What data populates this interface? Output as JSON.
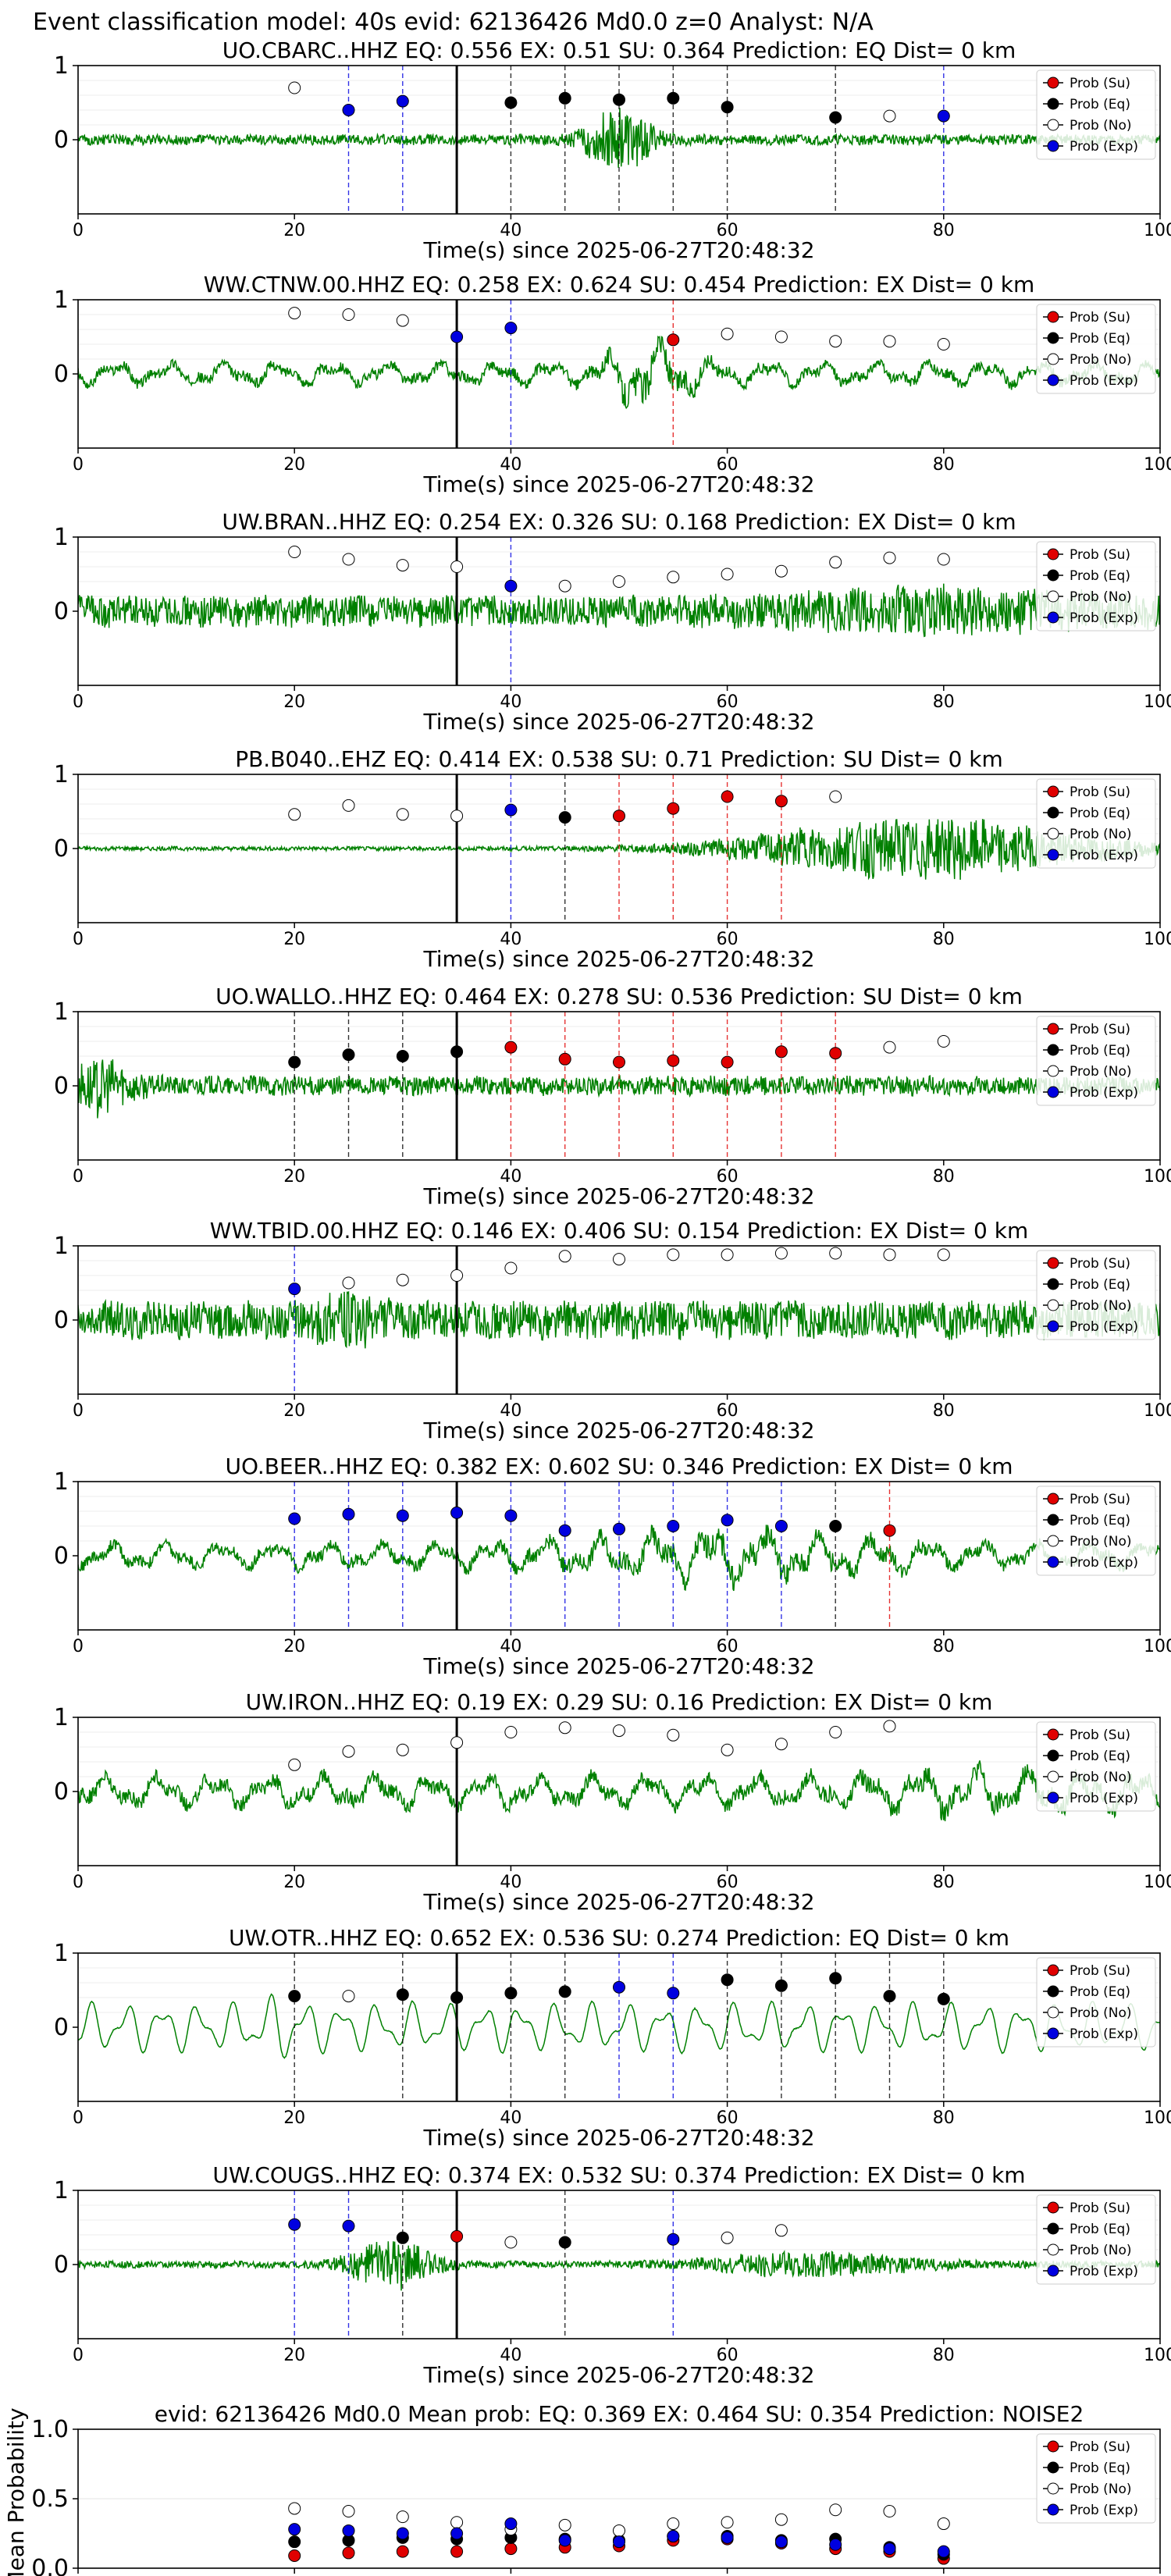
{
  "figure_title": "Event classification model: 40s evid: 62136426 Md0.0 z=0 Analyst: N/A",
  "xlabel": "Time(s) since 2025-06-27T20:48:32",
  "legend": [
    {
      "label": "Prob (Su)",
      "face": "#e00000",
      "edge": "#000000"
    },
    {
      "label": "Prob (Eq)",
      "face": "#000000",
      "edge": "#000000"
    },
    {
      "label": "Prob (No)",
      "face": "#ffffff",
      "edge": "#000000"
    },
    {
      "label": "Prob (Exp)",
      "face": "#0000e0",
      "edge": "#000000"
    }
  ],
  "colors": {
    "trace": "#008000",
    "su": "#e00000",
    "eq": "#000000",
    "no": "#ffffff",
    "exp": "#0000e0"
  },
  "chart_data": [
    {
      "type": "scatter",
      "title": "UO.CBARC..HHZ   EQ: 0.556  EX: 0.51  SU: 0.364   Prediction: EQ    Dist= 0 km",
      "xlim": [
        0,
        100
      ],
      "ylim": [
        -1,
        1
      ],
      "xticks": [
        0,
        20,
        40,
        60,
        80,
        100
      ],
      "yticks": [
        0,
        1
      ],
      "pick_line": 35,
      "trace": {
        "seed": 11,
        "amp": 0.15,
        "burst": {
          "center": 50,
          "width": 3,
          "amp": 0.85
        },
        "style": "noise"
      },
      "points": [
        {
          "x": 20,
          "y": 0.7,
          "cls": "no"
        },
        {
          "x": 25,
          "y": 0.4,
          "cls": "exp"
        },
        {
          "x": 30,
          "y": 0.52,
          "cls": "exp"
        },
        {
          "x": 40,
          "y": 0.5,
          "cls": "eq"
        },
        {
          "x": 45,
          "y": 0.56,
          "cls": "eq"
        },
        {
          "x": 50,
          "y": 0.54,
          "cls": "eq"
        },
        {
          "x": 55,
          "y": 0.56,
          "cls": "eq"
        },
        {
          "x": 60,
          "y": 0.44,
          "cls": "eq"
        },
        {
          "x": 70,
          "y": 0.3,
          "cls": "eq"
        },
        {
          "x": 75,
          "y": 0.32,
          "cls": "no"
        },
        {
          "x": 80,
          "y": 0.32,
          "cls": "exp"
        }
      ]
    },
    {
      "type": "scatter",
      "title": "WW.CTNW.00.HHZ   EQ: 0.258  EX: 0.624  SU: 0.454   Prediction: EX    Dist= 0 km",
      "xlim": [
        0,
        100
      ],
      "ylim": [
        -1,
        1
      ],
      "xticks": [
        0,
        20,
        40,
        60,
        80,
        100
      ],
      "yticks": [
        0,
        1
      ],
      "pick_line": 35,
      "trace": {
        "seed": 22,
        "amp": 0.35,
        "burst": {
          "center": 53,
          "width": 4,
          "amp": 0.8
        },
        "style": "wave"
      },
      "points": [
        {
          "x": 20,
          "y": 0.82,
          "cls": "no"
        },
        {
          "x": 25,
          "y": 0.8,
          "cls": "no"
        },
        {
          "x": 30,
          "y": 0.72,
          "cls": "no"
        },
        {
          "x": 35,
          "y": 0.5,
          "cls": "exp"
        },
        {
          "x": 40,
          "y": 0.62,
          "cls": "exp"
        },
        {
          "x": 55,
          "y": 0.46,
          "cls": "su"
        },
        {
          "x": 60,
          "y": 0.54,
          "cls": "no"
        },
        {
          "x": 65,
          "y": 0.5,
          "cls": "no"
        },
        {
          "x": 70,
          "y": 0.44,
          "cls": "no"
        },
        {
          "x": 75,
          "y": 0.44,
          "cls": "no"
        },
        {
          "x": 80,
          "y": 0.4,
          "cls": "no"
        }
      ]
    },
    {
      "type": "scatter",
      "title": "UW.BRAN..HHZ   EQ: 0.254  EX: 0.326  SU: 0.168   Prediction: EX    Dist= 0 km",
      "xlim": [
        0,
        100
      ],
      "ylim": [
        -1,
        1
      ],
      "xticks": [
        0,
        20,
        40,
        60,
        80,
        100
      ],
      "yticks": [
        0,
        1
      ],
      "pick_line": 35,
      "trace": {
        "seed": 33,
        "amp": 0.45,
        "burst": {
          "center": 80,
          "width": 15,
          "amp": 0.3
        },
        "style": "noise"
      },
      "points": [
        {
          "x": 20,
          "y": 0.8,
          "cls": "no"
        },
        {
          "x": 25,
          "y": 0.7,
          "cls": "no"
        },
        {
          "x": 30,
          "y": 0.62,
          "cls": "no"
        },
        {
          "x": 35,
          "y": 0.6,
          "cls": "no"
        },
        {
          "x": 40,
          "y": 0.34,
          "cls": "exp"
        },
        {
          "x": 45,
          "y": 0.34,
          "cls": "no"
        },
        {
          "x": 50,
          "y": 0.4,
          "cls": "no"
        },
        {
          "x": 55,
          "y": 0.46,
          "cls": "no"
        },
        {
          "x": 60,
          "y": 0.5,
          "cls": "no"
        },
        {
          "x": 65,
          "y": 0.54,
          "cls": "no"
        },
        {
          "x": 70,
          "y": 0.66,
          "cls": "no"
        },
        {
          "x": 75,
          "y": 0.72,
          "cls": "no"
        },
        {
          "x": 80,
          "y": 0.7,
          "cls": "no"
        }
      ]
    },
    {
      "type": "scatter",
      "title": "PB.B040..EHZ   EQ: 0.414  EX: 0.538  SU: 0.71   Prediction: SU    Dist= 0 km",
      "xlim": [
        0,
        100
      ],
      "ylim": [
        -1,
        1
      ],
      "xticks": [
        0,
        20,
        40,
        60,
        80,
        100
      ],
      "yticks": [
        0,
        1
      ],
      "pick_line": 35,
      "trace": {
        "seed": 44,
        "amp": 0.06,
        "burst": {
          "center": 78,
          "width": 16,
          "amp": 0.85
        },
        "style": "noise"
      },
      "points": [
        {
          "x": 20,
          "y": 0.46,
          "cls": "no"
        },
        {
          "x": 25,
          "y": 0.58,
          "cls": "no"
        },
        {
          "x": 30,
          "y": 0.46,
          "cls": "no"
        },
        {
          "x": 35,
          "y": 0.44,
          "cls": "no"
        },
        {
          "x": 40,
          "y": 0.52,
          "cls": "exp"
        },
        {
          "x": 45,
          "y": 0.42,
          "cls": "eq"
        },
        {
          "x": 50,
          "y": 0.44,
          "cls": "su"
        },
        {
          "x": 55,
          "y": 0.54,
          "cls": "su"
        },
        {
          "x": 60,
          "y": 0.7,
          "cls": "su"
        },
        {
          "x": 65,
          "y": 0.64,
          "cls": "su"
        },
        {
          "x": 70,
          "y": 0.7,
          "cls": "no"
        }
      ]
    },
    {
      "type": "scatter",
      "title": "UO.WALLO..HHZ   EQ: 0.464  EX: 0.278  SU: 0.536   Prediction: SU    Dist= 0 km",
      "xlim": [
        0,
        100
      ],
      "ylim": [
        -1,
        1
      ],
      "xticks": [
        0,
        20,
        40,
        60,
        80,
        100
      ],
      "yticks": [
        0,
        1
      ],
      "pick_line": 35,
      "trace": {
        "seed": 55,
        "amp": 0.28,
        "burst": {
          "center": 2,
          "width": 3,
          "amp": 0.6
        },
        "style": "noise"
      },
      "points": [
        {
          "x": 20,
          "y": 0.32,
          "cls": "eq"
        },
        {
          "x": 25,
          "y": 0.42,
          "cls": "eq"
        },
        {
          "x": 30,
          "y": 0.4,
          "cls": "eq"
        },
        {
          "x": 35,
          "y": 0.46,
          "cls": "eq"
        },
        {
          "x": 40,
          "y": 0.52,
          "cls": "su"
        },
        {
          "x": 45,
          "y": 0.36,
          "cls": "su"
        },
        {
          "x": 50,
          "y": 0.32,
          "cls": "su"
        },
        {
          "x": 55,
          "y": 0.34,
          "cls": "su"
        },
        {
          "x": 60,
          "y": 0.32,
          "cls": "su"
        },
        {
          "x": 65,
          "y": 0.46,
          "cls": "su"
        },
        {
          "x": 70,
          "y": 0.44,
          "cls": "su"
        },
        {
          "x": 75,
          "y": 0.52,
          "cls": "no"
        },
        {
          "x": 80,
          "y": 0.6,
          "cls": "no"
        }
      ]
    },
    {
      "type": "scatter",
      "title": "WW.TBID.00.HHZ   EQ: 0.146  EX: 0.406  SU: 0.154   Prediction: EX    Dist= 0 km",
      "xlim": [
        0,
        100
      ],
      "ylim": [
        -1,
        1
      ],
      "xticks": [
        0,
        20,
        40,
        60,
        80,
        100
      ],
      "yticks": [
        0,
        1
      ],
      "pick_line": 35,
      "trace": {
        "seed": 66,
        "amp": 0.55,
        "burst": {
          "center": 25,
          "width": 3,
          "amp": 0.35
        },
        "style": "noise"
      },
      "points": [
        {
          "x": 20,
          "y": 0.42,
          "cls": "exp"
        },
        {
          "x": 25,
          "y": 0.5,
          "cls": "no"
        },
        {
          "x": 30,
          "y": 0.54,
          "cls": "no"
        },
        {
          "x": 35,
          "y": 0.6,
          "cls": "no"
        },
        {
          "x": 40,
          "y": 0.7,
          "cls": "no"
        },
        {
          "x": 45,
          "y": 0.86,
          "cls": "no"
        },
        {
          "x": 50,
          "y": 0.82,
          "cls": "no"
        },
        {
          "x": 55,
          "y": 0.88,
          "cls": "no"
        },
        {
          "x": 60,
          "y": 0.88,
          "cls": "no"
        },
        {
          "x": 65,
          "y": 0.9,
          "cls": "no"
        },
        {
          "x": 70,
          "y": 0.9,
          "cls": "no"
        },
        {
          "x": 75,
          "y": 0.88,
          "cls": "no"
        },
        {
          "x": 80,
          "y": 0.88,
          "cls": "no"
        }
      ]
    },
    {
      "type": "scatter",
      "title": "UO.BEER..HHZ   EQ: 0.382  EX: 0.602  SU: 0.346   Prediction: EX    Dist= 0 km",
      "xlim": [
        0,
        100
      ],
      "ylim": [
        -1,
        1
      ],
      "xticks": [
        0,
        20,
        40,
        60,
        80,
        100
      ],
      "yticks": [
        0,
        1
      ],
      "pick_line": 35,
      "trace": {
        "seed": 77,
        "amp": 0.4,
        "burst": {
          "center": 60,
          "width": 14,
          "amp": 0.45
        },
        "style": "wave"
      },
      "points": [
        {
          "x": 20,
          "y": 0.5,
          "cls": "exp"
        },
        {
          "x": 25,
          "y": 0.56,
          "cls": "exp"
        },
        {
          "x": 30,
          "y": 0.54,
          "cls": "exp"
        },
        {
          "x": 35,
          "y": 0.58,
          "cls": "exp"
        },
        {
          "x": 40,
          "y": 0.54,
          "cls": "exp"
        },
        {
          "x": 45,
          "y": 0.34,
          "cls": "exp"
        },
        {
          "x": 50,
          "y": 0.36,
          "cls": "exp"
        },
        {
          "x": 55,
          "y": 0.4,
          "cls": "exp"
        },
        {
          "x": 60,
          "y": 0.48,
          "cls": "exp"
        },
        {
          "x": 65,
          "y": 0.4,
          "cls": "exp"
        },
        {
          "x": 70,
          "y": 0.4,
          "cls": "eq"
        },
        {
          "x": 75,
          "y": 0.34,
          "cls": "su"
        }
      ]
    },
    {
      "type": "scatter",
      "title": "UW.IRON..HHZ   EQ: 0.19  EX: 0.29  SU: 0.16   Prediction: EX    Dist= 0 km",
      "xlim": [
        0,
        100
      ],
      "ylim": [
        -1,
        1
      ],
      "xticks": [
        0,
        20,
        40,
        60,
        80,
        100
      ],
      "yticks": [
        0,
        1
      ],
      "pick_line": 35,
      "trace": {
        "seed": 88,
        "amp": 0.5,
        "burst": {
          "center": 85,
          "width": 12,
          "amp": 0.25
        },
        "style": "wave"
      },
      "points": [
        {
          "x": 20,
          "y": 0.36,
          "cls": "no"
        },
        {
          "x": 25,
          "y": 0.54,
          "cls": "no"
        },
        {
          "x": 30,
          "y": 0.56,
          "cls": "no"
        },
        {
          "x": 35,
          "y": 0.66,
          "cls": "no"
        },
        {
          "x": 40,
          "y": 0.8,
          "cls": "no"
        },
        {
          "x": 45,
          "y": 0.86,
          "cls": "no"
        },
        {
          "x": 50,
          "y": 0.82,
          "cls": "no"
        },
        {
          "x": 55,
          "y": 0.76,
          "cls": "no"
        },
        {
          "x": 60,
          "y": 0.56,
          "cls": "no"
        },
        {
          "x": 65,
          "y": 0.64,
          "cls": "no"
        },
        {
          "x": 70,
          "y": 0.8,
          "cls": "no"
        },
        {
          "x": 75,
          "y": 0.88,
          "cls": "no"
        }
      ]
    },
    {
      "type": "scatter",
      "title": "UW.OTR..HHZ   EQ: 0.652  EX: 0.536  SU: 0.274   Prediction: EQ    Dist= 0 km",
      "xlim": [
        0,
        100
      ],
      "ylim": [
        -1,
        1
      ],
      "xticks": [
        0,
        20,
        40,
        60,
        80,
        100
      ],
      "yticks": [
        0,
        1
      ],
      "pick_line": 35,
      "trace": {
        "seed": 99,
        "amp": 0.7,
        "burst": {
          "center": 19,
          "width": 2,
          "amp": 0.3
        },
        "style": "smooth"
      },
      "points": [
        {
          "x": 20,
          "y": 0.42,
          "cls": "eq"
        },
        {
          "x": 25,
          "y": 0.42,
          "cls": "no"
        },
        {
          "x": 30,
          "y": 0.44,
          "cls": "eq"
        },
        {
          "x": 35,
          "y": 0.4,
          "cls": "eq"
        },
        {
          "x": 40,
          "y": 0.46,
          "cls": "eq"
        },
        {
          "x": 45,
          "y": 0.48,
          "cls": "eq"
        },
        {
          "x": 50,
          "y": 0.54,
          "cls": "exp"
        },
        {
          "x": 55,
          "y": 0.46,
          "cls": "exp"
        },
        {
          "x": 60,
          "y": 0.64,
          "cls": "eq"
        },
        {
          "x": 65,
          "y": 0.56,
          "cls": "eq"
        },
        {
          "x": 70,
          "y": 0.66,
          "cls": "eq"
        },
        {
          "x": 75,
          "y": 0.42,
          "cls": "eq"
        },
        {
          "x": 80,
          "y": 0.38,
          "cls": "eq"
        }
      ]
    },
    {
      "type": "scatter",
      "title": "UW.COUGS..HHZ   EQ: 0.374  EX: 0.532  SU: 0.374   Prediction: EX    Dist= 0 km",
      "xlim": [
        0,
        100
      ],
      "ylim": [
        -1,
        1
      ],
      "xticks": [
        0,
        20,
        40,
        60,
        80,
        100
      ],
      "yticks": [
        0,
        1
      ],
      "pick_line": 35,
      "trace": {
        "seed": 111,
        "amp": 0.1,
        "burst": {
          "center": 29,
          "width": 4,
          "amp": 0.65
        },
        "burst2": {
          "center": 68,
          "width": 10,
          "amp": 0.3
        },
        "style": "noise"
      },
      "points": [
        {
          "x": 20,
          "y": 0.54,
          "cls": "exp"
        },
        {
          "x": 25,
          "y": 0.52,
          "cls": "exp"
        },
        {
          "x": 30,
          "y": 0.36,
          "cls": "eq"
        },
        {
          "x": 35,
          "y": 0.38,
          "cls": "su"
        },
        {
          "x": 40,
          "y": 0.3,
          "cls": "no"
        },
        {
          "x": 45,
          "y": 0.3,
          "cls": "eq"
        },
        {
          "x": 55,
          "y": 0.34,
          "cls": "exp"
        },
        {
          "x": 60,
          "y": 0.36,
          "cls": "no"
        },
        {
          "x": 65,
          "y": 0.46,
          "cls": "no"
        }
      ]
    },
    {
      "type": "scatter",
      "title": "evid: 62136426  Md0.0   Mean prob:   EQ: 0.369  EX: 0.464  SU: 0.354   Prediction: NOISE2",
      "ylabel": "Mean Probability",
      "xlim": [
        0,
        100
      ],
      "ylim": [
        0,
        1
      ],
      "xticks": [
        0,
        20,
        40,
        60,
        80,
        100
      ],
      "yticks": [
        0,
        0.5,
        1
      ],
      "ytick_labels": [
        "0.0",
        "0.5",
        "1.0"
      ],
      "grid": true,
      "series": [
        {
          "name": "Prob (Su)",
          "cls": "su",
          "x": [
            20,
            25,
            30,
            35,
            40,
            45,
            50,
            55,
            60,
            65,
            70,
            75,
            80
          ],
          "y": [
            0.09,
            0.11,
            0.12,
            0.12,
            0.14,
            0.15,
            0.16,
            0.2,
            0.21,
            0.18,
            0.14,
            0.12,
            0.07
          ]
        },
        {
          "name": "Prob (Eq)",
          "cls": "eq",
          "x": [
            20,
            25,
            30,
            35,
            40,
            45,
            50,
            55,
            60,
            65,
            70,
            75,
            80
          ],
          "y": [
            0.19,
            0.2,
            0.22,
            0.21,
            0.22,
            0.21,
            0.2,
            0.23,
            0.23,
            0.2,
            0.21,
            0.15,
            0.1
          ]
        },
        {
          "name": "Prob (No)",
          "cls": "no",
          "x": [
            20,
            25,
            30,
            35,
            40,
            45,
            50,
            55,
            60,
            65,
            70,
            75,
            80
          ],
          "y": [
            0.43,
            0.41,
            0.37,
            0.33,
            0.28,
            0.31,
            0.27,
            0.32,
            0.33,
            0.35,
            0.42,
            0.41,
            0.32
          ]
        },
        {
          "name": "Prob (Exp)",
          "cls": "exp",
          "x": [
            20,
            25,
            30,
            35,
            40,
            45,
            50,
            55,
            60,
            65,
            70,
            75,
            80
          ],
          "y": [
            0.28,
            0.27,
            0.25,
            0.25,
            0.32,
            0.2,
            0.19,
            0.23,
            0.22,
            0.19,
            0.17,
            0.14,
            0.12
          ]
        }
      ]
    }
  ]
}
